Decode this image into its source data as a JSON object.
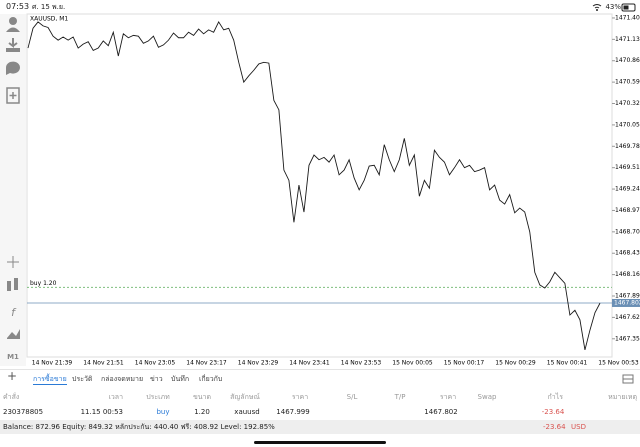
{
  "status_bar": {
    "time": "07:53",
    "date": "ศ. 15 พ.ย.",
    "battery": "43%"
  },
  "sidebar": {
    "timeframe": "M1"
  },
  "chart": {
    "type": "line",
    "symbol": "XAUUSD, M1",
    "color": "#1a1a1a",
    "values": [
      1471.02,
      1471.27,
      1471.35,
      1471.3,
      1471.28,
      1471.17,
      1471.12,
      1471.16,
      1471.12,
      1471.16,
      1471.02,
      1471.07,
      1471.1,
      1470.99,
      1471.02,
      1471.11,
      1471.05,
      1471.22,
      1470.92,
      1471.2,
      1471.15,
      1471.18,
      1471.17,
      1471.08,
      1471.11,
      1471.17,
      1471.03,
      1471.06,
      1471.12,
      1471.21,
      1471.15,
      1471.15,
      1471.22,
      1471.18,
      1471.26,
      1471.2,
      1471.25,
      1471.22,
      1471.35,
      1471.25,
      1471.27,
      1471.12,
      1470.84,
      1470.59,
      1470.67,
      1470.74,
      1470.82,
      1470.84,
      1470.83,
      1470.36,
      1470.24,
      1469.48,
      1469.35,
      1468.82,
      1469.29,
      1468.95,
      1469.54,
      1469.67,
      1469.61,
      1469.64,
      1469.58,
      1469.67,
      1469.42,
      1469.48,
      1469.61,
      1469.38,
      1469.23,
      1469.35,
      1469.53,
      1469.54,
      1469.42,
      1469.8,
      1469.61,
      1469.46,
      1469.61,
      1469.88,
      1469.54,
      1469.67,
      1469.15,
      1469.35,
      1469.25,
      1469.73,
      1469.64,
      1469.58,
      1469.42,
      1469.51,
      1469.61,
      1469.51,
      1469.54,
      1469.46,
      1469.48,
      1469.51,
      1469.23,
      1469.29,
      1469.1,
      1469.05,
      1469.17,
      1468.94,
      1469.0,
      1468.95,
      1468.7,
      1468.19,
      1468.03,
      1467.99,
      1468.07,
      1468.19,
      1468.12,
      1468.05,
      1467.65,
      1467.71,
      1467.59,
      1467.21,
      1467.46,
      1467.68,
      1467.8
    ],
    "ylim": [
      1467.12,
      1471.45
    ],
    "yticks": [
      {
        "value": 1471.4,
        "label": "1471.400"
      },
      {
        "value": 1471.13,
        "label": "1471.130"
      },
      {
        "value": 1470.86,
        "label": "1470.860"
      },
      {
        "value": 1470.59,
        "label": "1470.590"
      },
      {
        "value": 1470.32,
        "label": "1470.320"
      },
      {
        "value": 1470.05,
        "label": "1470.050"
      },
      {
        "value": 1469.78,
        "label": "1469.780"
      },
      {
        "value": 1469.51,
        "label": "1469.510"
      },
      {
        "value": 1469.24,
        "label": "1469.240"
      },
      {
        "value": 1468.97,
        "label": "1468.970"
      },
      {
        "value": 1468.7,
        "label": "1468.700"
      },
      {
        "value": 1468.43,
        "label": "1468.430"
      },
      {
        "value": 1468.16,
        "label": "1468.160"
      },
      {
        "value": 1467.89,
        "label": "1467.890"
      },
      {
        "value": 1467.62,
        "label": "1467.620"
      },
      {
        "value": 1467.35,
        "label": "1467.350"
      }
    ],
    "xlabels": [
      "14 Nov 21:39",
      "14 Nov 21:51",
      "14 Nov 23:05",
      "14 Nov 23:17",
      "14 Nov 23:29",
      "14 Nov 23:41",
      "14 Nov 23:53",
      "15 Nov 00:05",
      "15 Nov 00:17",
      "15 Nov 00:29",
      "15 Nov 00:41",
      "15 Nov 00:53"
    ],
    "order_line": {
      "label": "buy 1.20",
      "value": 1467.999,
      "color": "#7fbf7f"
    },
    "bid": {
      "value": 1467.802,
      "label": "1467.802",
      "color": "#6a8fb5"
    }
  },
  "tabs": [
    "การซื้อขาย",
    "ประวัติ",
    "กล่องจดหมาย",
    "ข่าว",
    "บันทึก",
    "เกี่ยวกับ"
  ],
  "table": {
    "columns": [
      "คำสั่ง",
      "เวลา",
      "ประเภท",
      "ขนาด",
      "สัญลักษณ์",
      "ราคา",
      "S/L",
      "T/P",
      "ราคา",
      "Swap",
      "กำไร",
      "หมายเหตุ"
    ],
    "row": {
      "order": "230378805",
      "time": "11.15 00:53",
      "type": "buy",
      "volume": "1.20",
      "symbol": "xauusd",
      "open_price": "1467.999",
      "price": "1467.802",
      "profit": "-23.64"
    }
  },
  "footer": {
    "summary": "Balance: 872.96 Equity: 849.32 หลักประกัน: 440.40 ฟรี: 408.92 Level: 192.85%",
    "profit": "-23.64",
    "currency": "USD"
  }
}
